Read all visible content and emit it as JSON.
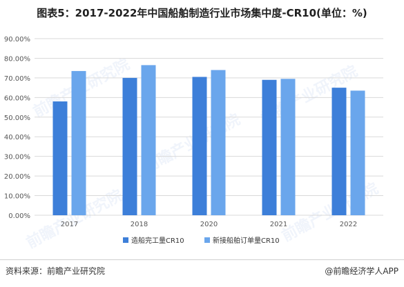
{
  "title": "图表5：2017-2022年中国船舶制造行业市场集中度-CR10(单位：%)",
  "footer": {
    "source": "资料来源：前瞻产业研究院",
    "brand": "@前瞻经济学人APP"
  },
  "watermark": "前瞻产业研究院",
  "colors": {
    "series1": "#3d7fd9",
    "series2": "#6aa6ec",
    "grid": "#d9d9d9",
    "axis_text": "#555555"
  },
  "chart_data": {
    "type": "bar",
    "categories": [
      "2017",
      "2018",
      "2020",
      "2021",
      "2022"
    ],
    "series": [
      {
        "name": "造船完工量CR10",
        "values": [
          58,
          70,
          70.5,
          69,
          65
        ]
      },
      {
        "name": "新接船舶订单量CR10",
        "values": [
          73.5,
          76.5,
          74,
          69.5,
          63.5
        ]
      }
    ],
    "ylim": [
      0,
      90
    ],
    "yticks": [
      "0.00%",
      "10.00%",
      "20.00%",
      "30.00%",
      "40.00%",
      "50.00%",
      "60.00%",
      "70.00%",
      "80.00%",
      "90.00%"
    ],
    "grid": true,
    "legend": "bottom"
  }
}
